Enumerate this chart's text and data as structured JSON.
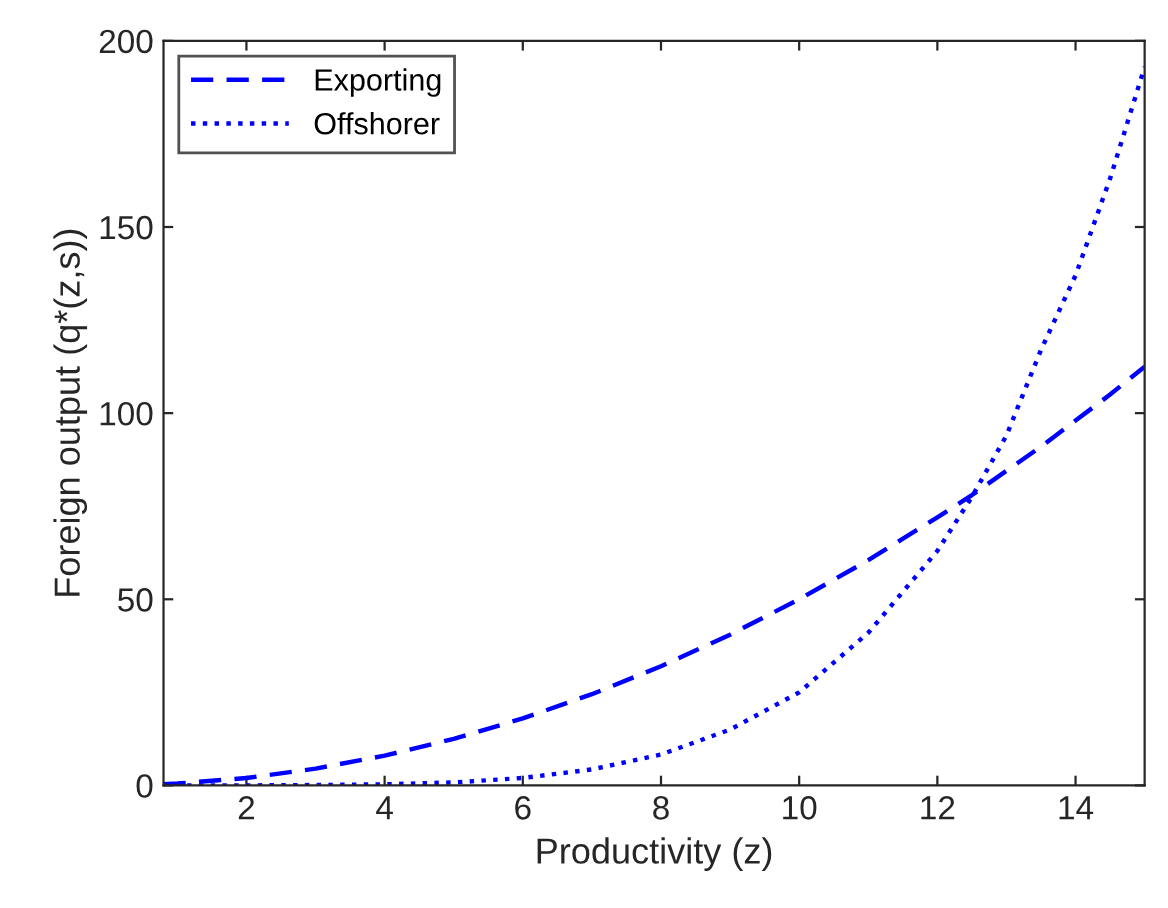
{
  "chart_data": {
    "type": "line",
    "xlabel": "Productivity (z)",
    "ylabel": "Foreign output (q*(z,s))",
    "x": [
      0.8,
      1,
      2,
      3,
      4,
      5,
      6,
      7,
      8,
      9,
      10,
      11,
      12,
      12.5,
      13,
      13.5,
      14,
      14.5,
      15
    ],
    "series": [
      {
        "name": "Exporting",
        "color": "#0000ff",
        "line_style": "dashed",
        "values": [
          0.3,
          0.5,
          2,
          4.5,
          8,
          12.5,
          18,
          24.5,
          32,
          40.5,
          50,
          60.5,
          72,
          78,
          84.5,
          91,
          98,
          105,
          112.5
        ]
      },
      {
        "name": "Offshorer",
        "color": "#0000ff",
        "line_style": "dotted",
        "values": [
          0,
          0,
          0,
          0.1,
          0.3,
          0.8,
          2,
          4.3,
          8.3,
          15,
          25,
          41,
          63,
          77.5,
          94,
          117,
          137,
          163,
          193
        ]
      }
    ],
    "xlim": [
      0.8,
      15
    ],
    "ylim": [
      0,
      200
    ],
    "xticks": [
      2,
      4,
      6,
      8,
      10,
      12,
      14
    ],
    "yticks": [
      0,
      50,
      100,
      150,
      200
    ],
    "grid": false,
    "legend": "top left",
    "marker": "none"
  }
}
